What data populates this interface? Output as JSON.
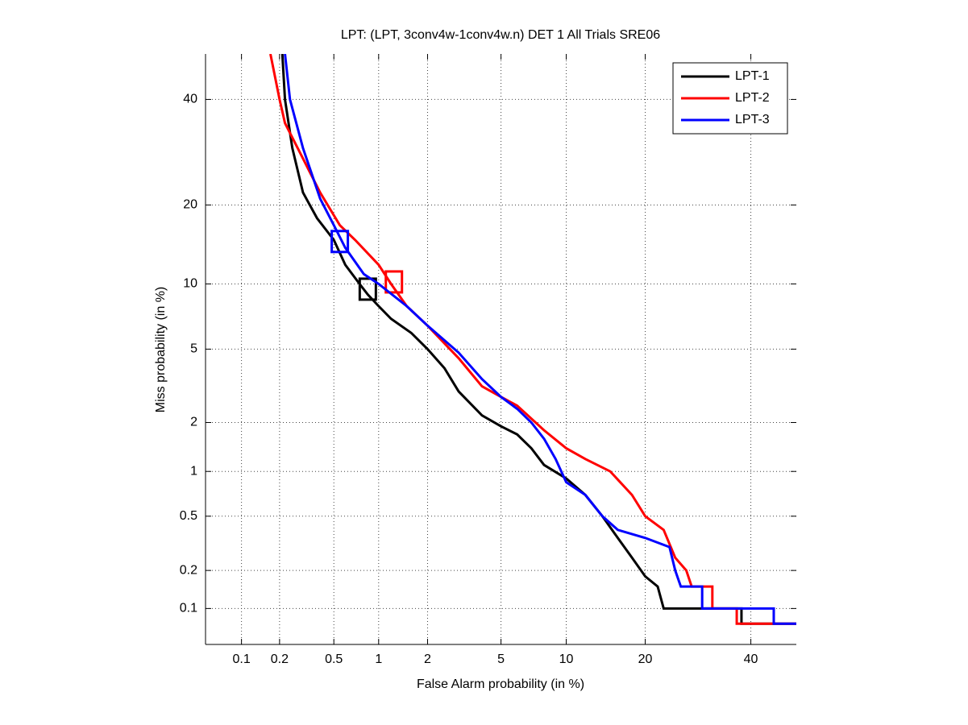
{
  "chart_data": {
    "type": "line",
    "scale": "probit",
    "title": "LPT: (LPT, 3conv4w-1conv4w.n) DET 1 All Trials SRE06",
    "xlabel": "False Alarm probability (in %)",
    "ylabel": "Miss probability (in %)",
    "xlim": [
      0.05,
      50
    ],
    "ylim": [
      0.05,
      50
    ],
    "xticks": [
      0.1,
      0.2,
      0.5,
      1,
      2,
      5,
      10,
      20,
      40
    ],
    "yticks": [
      0.1,
      0.2,
      0.5,
      1,
      2,
      5,
      10,
      20,
      40
    ],
    "grid": true,
    "legend": "top-right",
    "series": [
      {
        "name": "LPT-1",
        "color": "#000000",
        "x": [
          0.21,
          0.22,
          0.25,
          0.3,
          0.38,
          0.5,
          0.6,
          0.75,
          0.85,
          1,
          1.2,
          1.6,
          2,
          2.5,
          3,
          4,
          5,
          6,
          7,
          8,
          10,
          12,
          14,
          16,
          18,
          20,
          22,
          23,
          38,
          38,
          50
        ],
        "values": [
          50,
          40,
          30,
          22,
          18,
          15,
          12,
          10,
          9,
          8,
          7,
          6,
          5,
          4,
          3,
          2.2,
          1.9,
          1.7,
          1.4,
          1.1,
          0.9,
          0.7,
          0.5,
          0.35,
          0.25,
          0.18,
          0.15,
          0.1,
          0.1,
          0.075,
          0.075
        ],
        "min_dcf": {
          "x": 0.85,
          "y": 9.5
        }
      },
      {
        "name": "LPT-2",
        "color": "#ff0000",
        "x": [
          0.17,
          0.2,
          0.22,
          0.3,
          0.4,
          0.55,
          0.7,
          1,
          1.2,
          1.5,
          2,
          3,
          4,
          5,
          6,
          8,
          10,
          12,
          15,
          18,
          20,
          23,
          25,
          27,
          28,
          32,
          32,
          37,
          37,
          50
        ],
        "values": [
          50,
          40,
          35,
          28,
          22,
          17,
          15,
          12,
          10,
          8,
          6.5,
          4.5,
          3.2,
          2.8,
          2.5,
          1.8,
          1.4,
          1.2,
          1,
          0.7,
          0.5,
          0.4,
          0.25,
          0.2,
          0.15,
          0.15,
          0.1,
          0.1,
          0.075,
          0.075
        ],
        "min_dcf": {
          "x": 1.25,
          "y": 10.2
        }
      },
      {
        "name": "LPT-3",
        "color": "#0000ff",
        "x": [
          0.22,
          0.24,
          0.3,
          0.4,
          0.5,
          0.6,
          0.8,
          1,
          1.5,
          2,
          3,
          4,
          5,
          6,
          7,
          8,
          9,
          10,
          12,
          14,
          16,
          20,
          24,
          25,
          26,
          30,
          30,
          45,
          45,
          50
        ],
        "values": [
          50,
          40,
          30,
          21,
          17,
          14,
          11,
          10,
          8,
          6.5,
          4.8,
          3.5,
          2.8,
          2.4,
          2,
          1.6,
          1.2,
          0.85,
          0.7,
          0.5,
          0.4,
          0.35,
          0.3,
          0.2,
          0.15,
          0.15,
          0.1,
          0.1,
          0.075,
          0.075
        ],
        "min_dcf": {
          "x": 0.55,
          "y": 14.8
        }
      }
    ]
  }
}
